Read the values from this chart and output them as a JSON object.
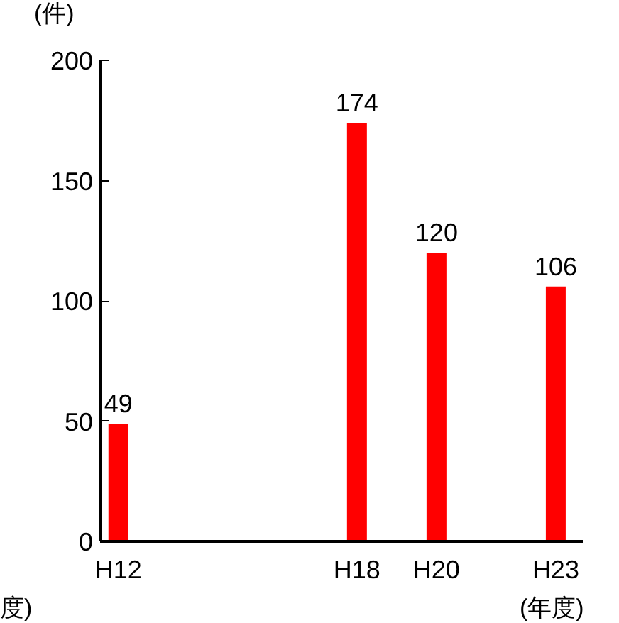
{
  "chart_data": {
    "type": "bar",
    "categories": [
      "H12",
      null,
      null,
      null,
      null,
      null,
      "H18",
      null,
      "H20",
      null,
      null,
      "H23"
    ],
    "values": [
      49,
      null,
      null,
      null,
      null,
      null,
      174,
      null,
      120,
      null,
      null,
      106
    ],
    "color": "#ff0000",
    "ylim": [
      0,
      200
    ],
    "yticks": [
      0,
      50,
      100,
      150,
      200
    ],
    "grid": false,
    "data_labels": true,
    "ylabel": "(件)",
    "xlabel": "(年度)",
    "annotations": [
      "度)"
    ]
  }
}
